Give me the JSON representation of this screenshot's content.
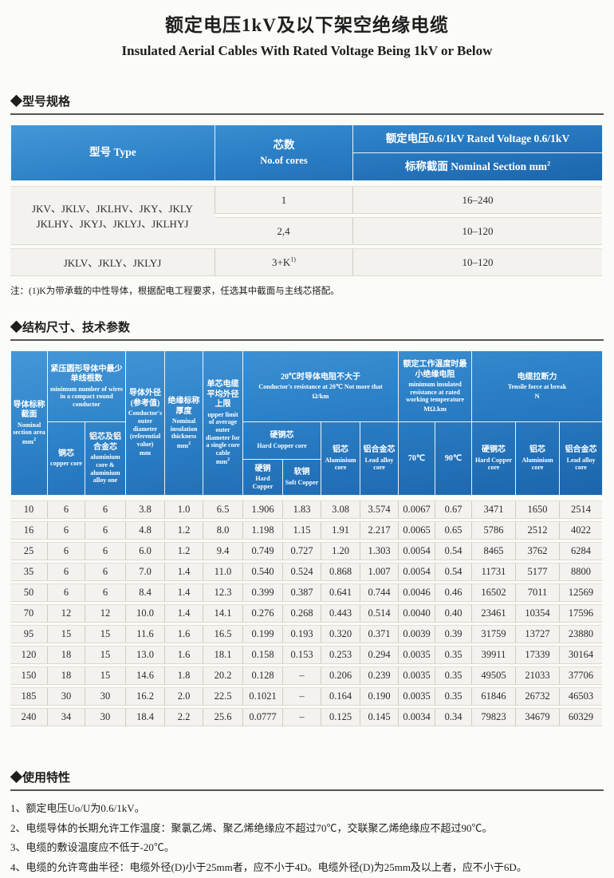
{
  "page": {
    "title_zh": "额定电压1kV及以下架空绝缘电缆",
    "title_en": "Insulated Aerial Cables With Rated Voltage Being 1kV or Below"
  },
  "sections": {
    "model_spec": "◆型号规格",
    "structure": "◆结构尺寸、技术参数",
    "usage": "◆使用特性"
  },
  "table1": {
    "headers": {
      "type": "型号 Type",
      "cores_zh": "芯数",
      "cores_en": "No.of cores",
      "voltage": "额定电压0.6/1kV Rated Voltage 0.6/1kV",
      "section_label": "标称截面 Nominal Section mm",
      "section_sup": "2"
    },
    "rows": [
      {
        "type_line1": "JKV、JKLV、JKLHV、JKY、JKLY",
        "type_line2": "JKLHY、JKYJ、JKLYJ、JKLHYJ",
        "cores": "1",
        "section": "16–240"
      },
      {
        "cores": "2,4",
        "section": "10–120"
      },
      {
        "type": "JKLV、JKLY、JKLYJ",
        "cores": "3+K",
        "cores_sup": "1)",
        "section": "10–120"
      }
    ],
    "note": "注：(1)K为带承载的中性导体，根据配电工程要求，任选其中截面与主线芯搭配。"
  },
  "table2": {
    "header": {
      "c1": {
        "zh": "导体标称截面",
        "en": "Nominal section area",
        "unit": "mm",
        "sup": "2"
      },
      "min_wires": {
        "zh": "紧压圆形导体中最少单线根数",
        "en": "minimum number of wires in a compact round conductor"
      },
      "copper": {
        "zh": "铜芯",
        "en": "copper core"
      },
      "alu": {
        "zh": "铝芯及铝合金芯",
        "en": "aluminium core & aluminium alloy one"
      },
      "c4": {
        "zh": "导体外径(参考值)",
        "en": "Conductor's outer diameter (referential value)",
        "unit": "mm"
      },
      "c5": {
        "zh": "绝缘标称厚度",
        "en": "Nominal insulation thickness",
        "unit": "mm",
        "sup": "2"
      },
      "c6": {
        "zh": "单芯电缆平均外径上限",
        "en": "upper limit of average outer diameter for a single core cable",
        "unit": "mm",
        "sup": "2"
      },
      "resistance": {
        "zh": "20℃时导体电阻不大于",
        "en": "Conductor's resistance at 20℃ Not more that",
        "unit": "Ω/km"
      },
      "hard_copper_core": {
        "zh": "硬铜芯",
        "en": "Hard Copper core"
      },
      "hard_copper": {
        "zh": "硬铜",
        "en": "Hard Copper"
      },
      "soft_copper": {
        "zh": "软铜",
        "en": "Soft Copper"
      },
      "alu_core": {
        "zh": "铝芯",
        "en": "Aluminium core"
      },
      "alloy_core": {
        "zh": "铝合金芯",
        "en": "Lead alloy core"
      },
      "min_insulation": {
        "zh": "额定工作温度时最小绝缘电阻",
        "en": "minimum insulated resistance at rated working temperature",
        "unit": "MΩ.km"
      },
      "t70": "70℃",
      "t90": "90℃",
      "tensile": {
        "zh": "电缆拉断力",
        "en": "Tensile force at break",
        "unit": "N"
      },
      "tensile_hard": {
        "zh": "硬铜芯",
        "en": "Hard Copper core"
      },
      "tensile_alu": {
        "zh": "铝芯",
        "en": "Aluminium core"
      },
      "tensile_alloy": {
        "zh": "铝合金芯",
        "en": "Lead alloy core"
      }
    },
    "rows": [
      [
        "10",
        "6",
        "6",
        "3.8",
        "1.0",
        "6.5",
        "1.906",
        "1.83",
        "3.08",
        "3.574",
        "0.0067",
        "0.67",
        "3471",
        "1650",
        "2514"
      ],
      [
        "16",
        "6",
        "6",
        "4.8",
        "1.2",
        "8.0",
        "1.198",
        "1.15",
        "1.91",
        "2.217",
        "0.0065",
        "0.65",
        "5786",
        "2512",
        "4022"
      ],
      [
        "25",
        "6",
        "6",
        "6.0",
        "1.2",
        "9.4",
        "0.749",
        "0.727",
        "1.20",
        "1.303",
        "0.0054",
        "0.54",
        "8465",
        "3762",
        "6284"
      ],
      [
        "35",
        "6",
        "6",
        "7.0",
        "1.4",
        "11.0",
        "0.540",
        "0.524",
        "0.868",
        "1.007",
        "0.0054",
        "0.54",
        "11731",
        "5177",
        "8800"
      ],
      [
        "50",
        "6",
        "6",
        "8.4",
        "1.4",
        "12.3",
        "0.399",
        "0.387",
        "0.641",
        "0.744",
        "0.0046",
        "0.46",
        "16502",
        "7011",
        "12569"
      ],
      [
        "70",
        "12",
        "12",
        "10.0",
        "1.4",
        "14.1",
        "0.276",
        "0.268",
        "0.443",
        "0.514",
        "0.0040",
        "0.40",
        "23461",
        "10354",
        "17596"
      ],
      [
        "95",
        "15",
        "15",
        "11.6",
        "1.6",
        "16.5",
        "0.199",
        "0.193",
        "0.320",
        "0.371",
        "0.0039",
        "0.39",
        "31759",
        "13727",
        "23880"
      ],
      [
        "120",
        "18",
        "15",
        "13.0",
        "1.6",
        "18.1",
        "0.158",
        "0.153",
        "0.253",
        "0.294",
        "0.0035",
        "0.35",
        "39911",
        "17339",
        "30164"
      ],
      [
        "150",
        "18",
        "15",
        "14.6",
        "1.8",
        "20.2",
        "0.128",
        "–",
        "0.206",
        "0.239",
        "0.0035",
        "0.35",
        "49505",
        "21033",
        "37706"
      ],
      [
        "185",
        "30",
        "30",
        "16.2",
        "2.0",
        "22.5",
        "0.1021",
        "–",
        "0.164",
        "0.190",
        "0.0035",
        "0.35",
        "61846",
        "26732",
        "46503"
      ],
      [
        "240",
        "34",
        "30",
        "18.4",
        "2.2",
        "25.6",
        "0.0777",
        "–",
        "0.125",
        "0.145",
        "0.0034",
        "0.34",
        "79823",
        "34679",
        "60329"
      ]
    ]
  },
  "usage": {
    "items": [
      "1、额定电压Uo/U为0.6/1kV。",
      "2、电缆导体的长期允许工作温度：聚氯乙烯、聚乙烯绝缘应不超过70℃，交联聚乙烯绝缘应不超过90℃。",
      "3、电缆的敷设温度应不低于-20℃。",
      "4、电缆的允许弯曲半径：电缆外径(D)小于25mm者，应不小于4D。电缆外径(D)为25mm及以上者，应不小于6D。"
    ]
  }
}
